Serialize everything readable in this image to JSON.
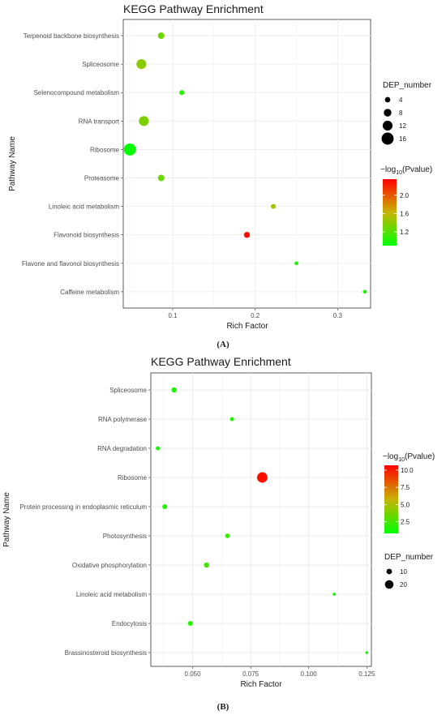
{
  "chart_data": [
    {
      "type": "scatter",
      "title": "KEGG Pathway Enrichment",
      "xlabel": "Rich Factor",
      "ylabel": "Pathway Name",
      "caption": "(A)",
      "xlim": [
        0.04,
        0.34
      ],
      "xticks": [
        0.1,
        0.2,
        0.3
      ],
      "xtick_labels": [
        "0.1",
        "0.2",
        "0.3"
      ],
      "categories": [
        "Terpenoid backbone biosynthesis",
        "Spliceosome",
        "Selenocompound metabolism",
        "RNA transport",
        "Ribosome",
        "Proteasome",
        "Linoleic acid metabolism",
        "Flavonoid biosynthesis",
        "Flavone and flavonol biosynthesis",
        "Caffeine metabolism"
      ],
      "points": [
        {
          "pathway": "Terpenoid backbone biosynthesis",
          "rich_factor": 0.086,
          "dep_number": 6,
          "log10_pvalue": 1.3
        },
        {
          "pathway": "Spliceosome",
          "rich_factor": 0.062,
          "dep_number": 12,
          "log10_pvalue": 1.4
        },
        {
          "pathway": "Selenocompound metabolism",
          "rich_factor": 0.111,
          "dep_number": 3,
          "log10_pvalue": 1.05
        },
        {
          "pathway": "RNA transport",
          "rich_factor": 0.065,
          "dep_number": 12,
          "log10_pvalue": 1.35
        },
        {
          "pathway": "Ribosome",
          "rich_factor": 0.048,
          "dep_number": 16,
          "log10_pvalue": 0.9
        },
        {
          "pathway": "Proteasome",
          "rich_factor": 0.086,
          "dep_number": 6,
          "log10_pvalue": 1.3
        },
        {
          "pathway": "Linoleic acid metabolism",
          "rich_factor": 0.222,
          "dep_number": 3,
          "log10_pvalue": 1.5
        },
        {
          "pathway": "Flavonoid biosynthesis",
          "rich_factor": 0.19,
          "dep_number": 5,
          "log10_pvalue": 2.3
        },
        {
          "pathway": "Flavone and flavonol biosynthesis",
          "rich_factor": 0.25,
          "dep_number": 1,
          "log10_pvalue": 1.0
        },
        {
          "pathway": "Caffeine metabolism",
          "rich_factor": 0.333,
          "dep_number": 1,
          "log10_pvalue": 1.0
        }
      ],
      "size_legend": {
        "title": "DEP_number",
        "values": [
          4,
          8,
          12,
          16
        ],
        "labels": [
          "4",
          "8",
          "12",
          "16"
        ]
      },
      "color_legend": {
        "title_prefix": "−log",
        "title_sub": "10",
        "title_suffix": "(Pvalue)",
        "min": 0.9,
        "max": 2.35,
        "ticks": [
          1.2,
          1.6,
          2.0
        ],
        "tick_labels": [
          "1.2",
          "1.6",
          "2.0"
        ],
        "low_color": "#00ff00",
        "high_color": "#ff0000"
      }
    },
    {
      "type": "scatter",
      "title": "KEGG Pathway Enrichment",
      "xlabel": "Rich Factor",
      "ylabel": "Pathway Name",
      "caption": "(B)",
      "xlim": [
        0.032,
        0.127
      ],
      "xticks": [
        0.05,
        0.075,
        0.1,
        0.125
      ],
      "xtick_labels": [
        "0.050",
        "0.075",
        "0.100",
        "0.125"
      ],
      "categories": [
        "Spliceosome",
        "RNA polymerase",
        "RNA degradation",
        "Ribosome",
        "Protein processing in endoplasmic reticulum",
        "Photosynthesis",
        "Oxidative phosphorylation",
        "Linoleic acid metabolism",
        "Endocytosis",
        "Brassinosteroid biosynthesis"
      ],
      "points": [
        {
          "pathway": "Spliceosome",
          "rich_factor": 0.042,
          "dep_number": 9,
          "log10_pvalue": 1.5
        },
        {
          "pathway": "RNA polymerase",
          "rich_factor": 0.067,
          "dep_number": 5,
          "log10_pvalue": 1.5
        },
        {
          "pathway": "RNA degradation",
          "rich_factor": 0.035,
          "dep_number": 5,
          "log10_pvalue": 1.3
        },
        {
          "pathway": "Ribosome",
          "rich_factor": 0.08,
          "dep_number": 26,
          "log10_pvalue": 10.3
        },
        {
          "pathway": "Protein processing in endoplasmic reticulum",
          "rich_factor": 0.038,
          "dep_number": 8,
          "log10_pvalue": 1.6
        },
        {
          "pathway": "Photosynthesis",
          "rich_factor": 0.065,
          "dep_number": 7,
          "log10_pvalue": 2.2
        },
        {
          "pathway": "Oxidative phosphorylation",
          "rich_factor": 0.056,
          "dep_number": 9,
          "log10_pvalue": 2.4
        },
        {
          "pathway": "Linoleic acid metabolism",
          "rich_factor": 0.111,
          "dep_number": 2,
          "log10_pvalue": 1.1
        },
        {
          "pathway": "Endocytosis",
          "rich_factor": 0.049,
          "dep_number": 8,
          "log10_pvalue": 1.5
        },
        {
          "pathway": "Brassinosteroid biosynthesis",
          "rich_factor": 0.125,
          "dep_number": 1,
          "log10_pvalue": 1.0
        }
      ],
      "size_legend": {
        "title": "DEP_number",
        "values": [
          10,
          20
        ],
        "labels": [
          "10",
          "20"
        ]
      },
      "color_legend": {
        "title_prefix": "−log",
        "title_sub": "10",
        "title_suffix": "(Pvalue)",
        "min": 0.8,
        "max": 10.7,
        "ticks": [
          2.5,
          5.0,
          7.5,
          10.0
        ],
        "tick_labels": [
          "2.5",
          "5.0",
          "7.5",
          "10.0"
        ],
        "low_color": "#00ff00",
        "high_color": "#ff0000"
      }
    }
  ]
}
